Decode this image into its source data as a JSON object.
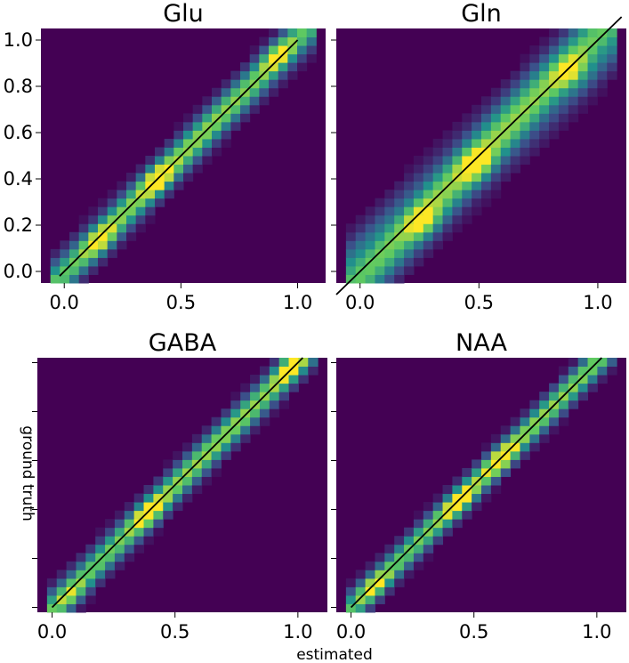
{
  "figure": {
    "xlabel": "estimated",
    "ylabel": "ground truth"
  },
  "colors": {
    "background": "#440154",
    "identity_line": "#000000",
    "colormap": [
      "#440154",
      "#3b528b",
      "#21918c",
      "#5ec962",
      "#fde725"
    ]
  },
  "chart_data": [
    {
      "type": "heatmap",
      "title": "Glu",
      "xlim": [
        -0.1,
        1.12
      ],
      "ylim": [
        -0.05,
        1.05
      ],
      "x_ticks": [
        0.0,
        0.5,
        1.0
      ],
      "x_tick_labels": [
        "0.0",
        "0.5",
        "1.0"
      ],
      "y_ticks": [
        0.0,
        0.2,
        0.4,
        0.6,
        0.8,
        1.0
      ],
      "y_tick_labels": [
        "0.0",
        "0.2",
        "0.4",
        "0.6",
        "0.8",
        "1.0"
      ],
      "bins": 30,
      "density_ridge": {
        "slope": 1.0,
        "offset": 0.0,
        "spread": 0.06
      },
      "hot_spots": [
        [
          0.17,
          0.12
        ],
        [
          0.4,
          0.4
        ],
        [
          0.9,
          0.95
        ]
      ],
      "identity_line": [
        [
          -0.02,
          -0.02
        ],
        [
          1.0,
          1.0
        ]
      ]
    },
    {
      "type": "heatmap",
      "title": "Gln",
      "xlim": [
        -0.1,
        1.12
      ],
      "ylim": [
        -0.05,
        1.05
      ],
      "x_ticks": [
        0.0,
        0.5,
        1.0
      ],
      "x_tick_labels": [
        "0.0",
        "0.5",
        "1.0"
      ],
      "y_ticks": [
        0.0,
        0.2,
        0.4,
        0.6,
        0.8,
        1.0
      ],
      "y_tick_labels": [],
      "bins": 30,
      "density_ridge": {
        "slope": 1.0,
        "offset": 0.0,
        "spread": 0.1
      },
      "hot_spots": [
        [
          0.28,
          0.2
        ],
        [
          0.5,
          0.45
        ],
        [
          0.9,
          0.85
        ]
      ],
      "identity_line": [
        [
          -0.1,
          -0.1
        ],
        [
          1.1,
          1.1
        ]
      ]
    },
    {
      "type": "heatmap",
      "title": "GABA",
      "xlim": [
        -0.06,
        1.12
      ],
      "ylim": [
        -0.02,
        1.02
      ],
      "x_ticks": [
        0.0,
        0.5,
        1.0
      ],
      "x_tick_labels": [
        "0.0",
        "0.5",
        "1.0"
      ],
      "y_ticks": [
        0.0,
        0.2,
        0.4,
        0.6,
        0.8,
        1.0
      ],
      "y_tick_labels": [],
      "bins": 30,
      "density_ridge": {
        "slope": 1.0,
        "offset": 0.0,
        "spread": 0.05
      },
      "hot_spots": [
        [
          0.1,
          0.02
        ],
        [
          0.4,
          0.38
        ],
        [
          0.95,
          1.0
        ]
      ],
      "identity_line": [
        [
          0.0,
          0.0
        ],
        [
          1.02,
          1.02
        ]
      ]
    },
    {
      "type": "heatmap",
      "title": "NAA",
      "xlim": [
        -0.06,
        1.12
      ],
      "ylim": [
        -0.02,
        1.02
      ],
      "x_ticks": [
        0.0,
        0.5,
        1.0
      ],
      "x_tick_labels": [
        "0.0",
        "0.5",
        "1.0"
      ],
      "y_ticks": [
        0.0,
        0.2,
        0.4,
        0.6,
        0.8,
        1.0
      ],
      "y_tick_labels": [],
      "bins": 30,
      "density_ridge": {
        "slope": 1.0,
        "offset": 0.0,
        "spread": 0.045
      },
      "hot_spots": [
        [
          0.1,
          0.08
        ],
        [
          0.45,
          0.42
        ],
        [
          0.62,
          0.6
        ]
      ],
      "identity_line": [
        [
          0.0,
          0.0
        ],
        [
          1.02,
          1.02
        ]
      ]
    }
  ]
}
